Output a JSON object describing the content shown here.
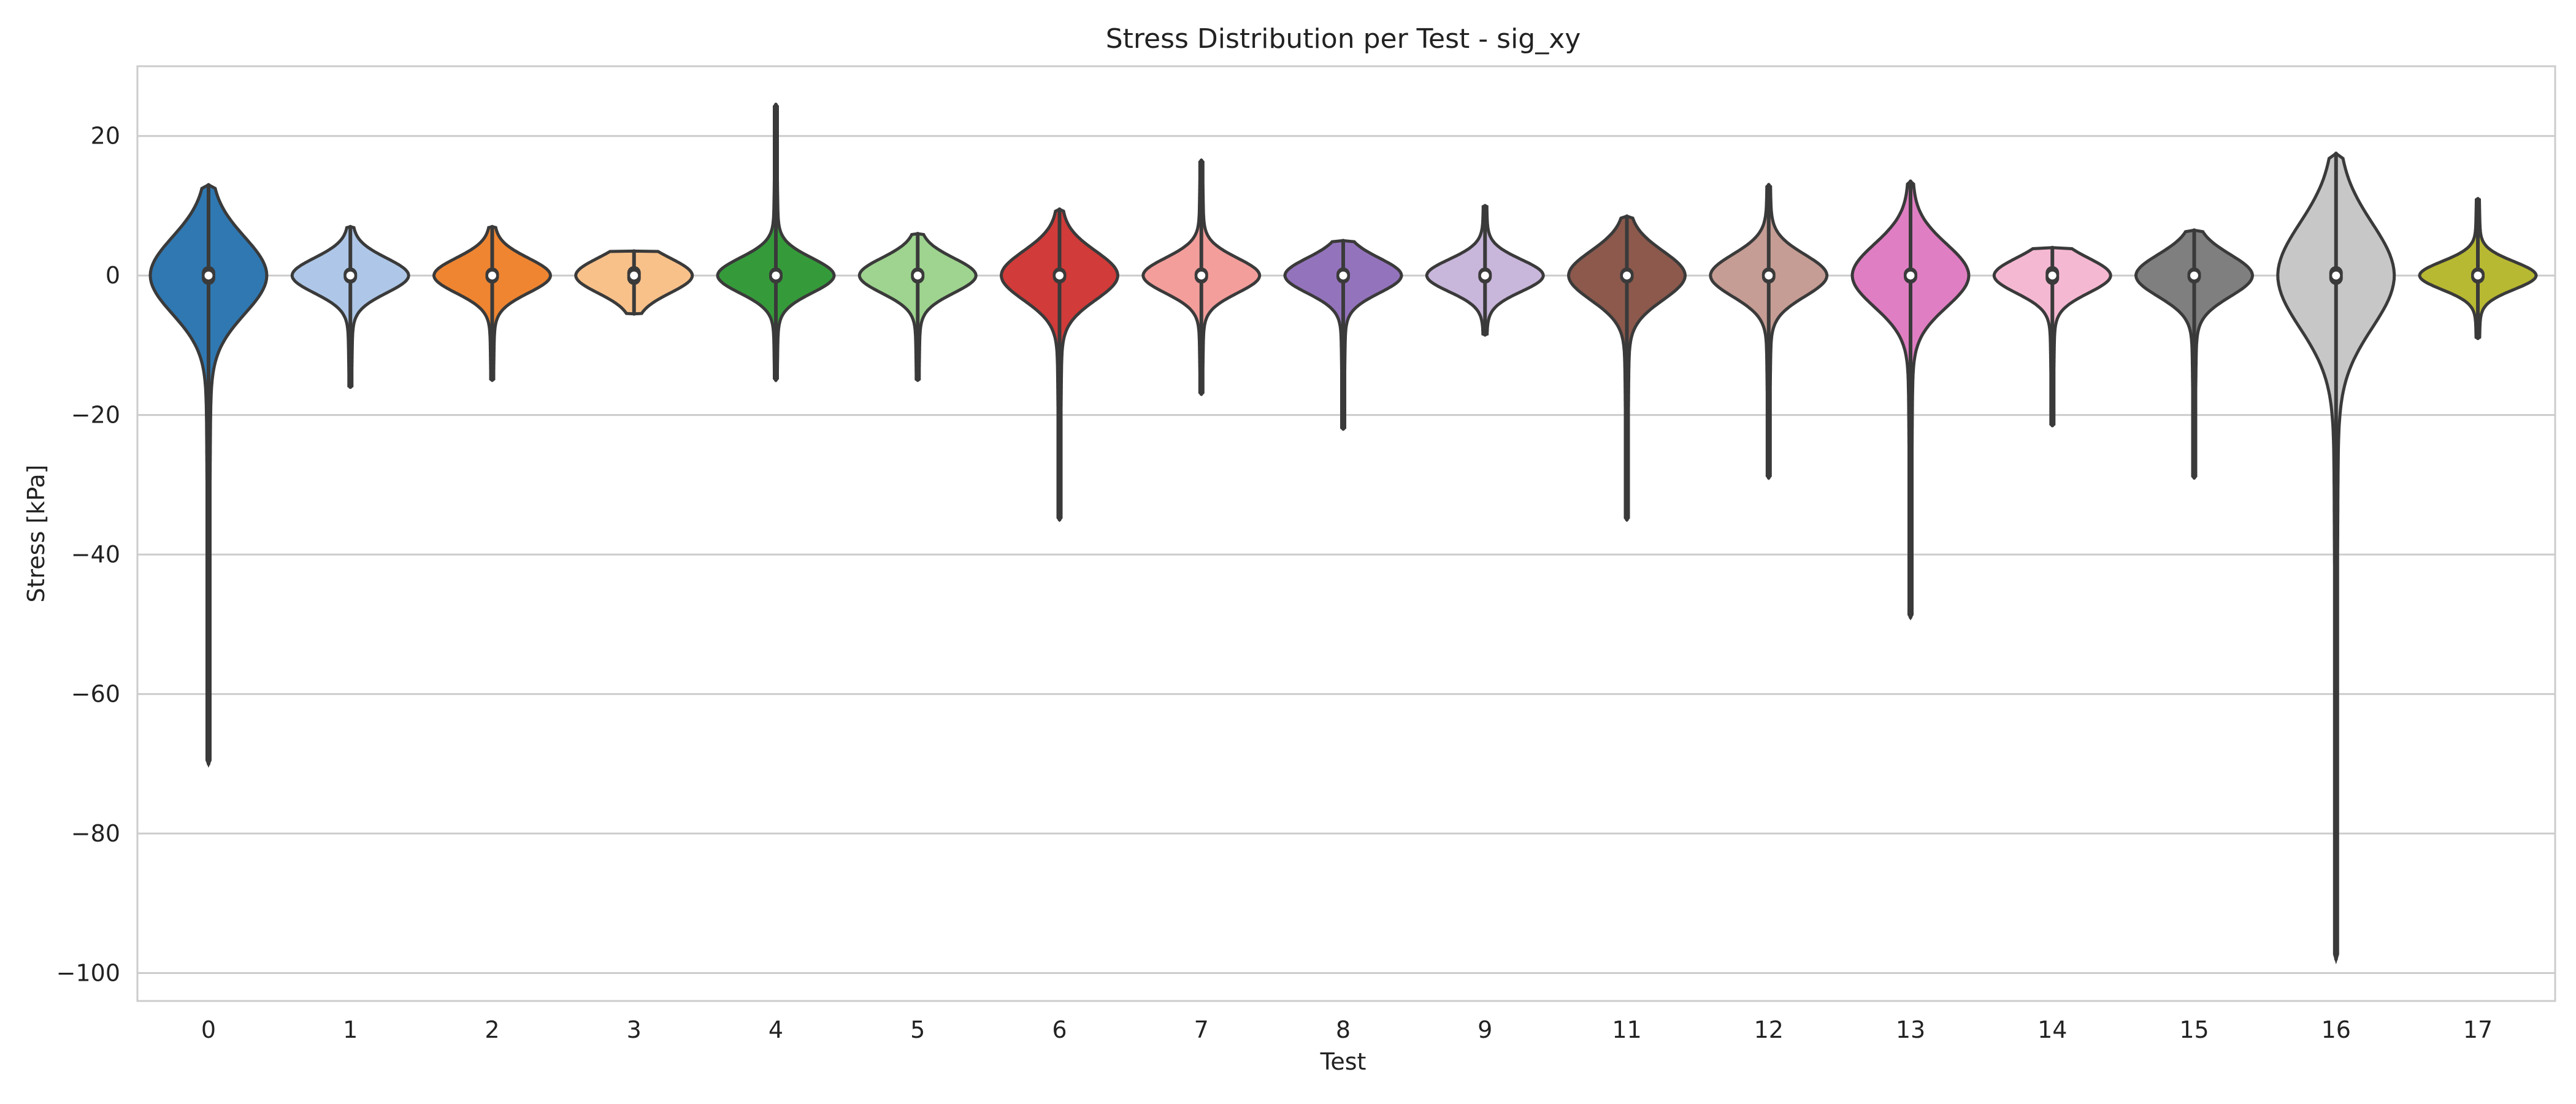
{
  "chart_data": {
    "type": "violin",
    "title": "Stress Distribution per Test - sig_xy",
    "xlabel": "Test",
    "ylabel": "Stress [kPa]",
    "ylim": [
      -104,
      30
    ],
    "yticks": [
      20,
      0,
      -20,
      -40,
      -60,
      -80,
      -100
    ],
    "ytick_labels": [
      "20",
      "0",
      "−20",
      "−40",
      "−60",
      "−80",
      "−100"
    ],
    "grid": true,
    "categories": [
      "0",
      "1",
      "2",
      "3",
      "4",
      "5",
      "6",
      "7",
      "8",
      "9",
      "11",
      "12",
      "13",
      "14",
      "15",
      "16",
      "17"
    ],
    "series": [
      {
        "test": "0",
        "min": -70,
        "max": 13,
        "median": 0,
        "q1": -1.0,
        "q3": 1.0,
        "spread": 5.5,
        "color": "#2f78b2"
      },
      {
        "test": "1",
        "min": -16,
        "max": 7,
        "median": 0,
        "q1": -0.8,
        "q3": 0.8,
        "spread": 2.5,
        "color": "#aec7e8"
      },
      {
        "test": "2",
        "min": -15,
        "max": 7,
        "median": 0,
        "q1": -0.8,
        "q3": 0.8,
        "spread": 2.5,
        "color": "#ef8531"
      },
      {
        "test": "3",
        "min": -5.5,
        "max": 3.5,
        "median": 0,
        "q1": -1.0,
        "q3": 1.0,
        "spread": 2.5,
        "color": "#f8c189"
      },
      {
        "test": "4",
        "min": -15,
        "max": 24.5,
        "median": 0,
        "q1": -0.8,
        "q3": 0.8,
        "spread": 2.5,
        "color": "#359b3a"
      },
      {
        "test": "5",
        "min": -15,
        "max": 6,
        "median": 0,
        "q1": -0.8,
        "q3": 0.8,
        "spread": 2.5,
        "color": "#9ed48f"
      },
      {
        "test": "6",
        "min": -35,
        "max": 9.5,
        "median": 0,
        "q1": -0.8,
        "q3": 0.8,
        "spread": 3.5,
        "color": "#d13b39"
      },
      {
        "test": "7",
        "min": -17,
        "max": 16.5,
        "median": 0,
        "q1": -0.8,
        "q3": 0.8,
        "spread": 2.5,
        "color": "#f39e9b"
      },
      {
        "test": "8",
        "min": -22,
        "max": 5,
        "median": 0,
        "q1": -0.8,
        "q3": 0.8,
        "spread": 2.5,
        "color": "#9473bd"
      },
      {
        "test": "9",
        "min": -8.5,
        "max": 10,
        "median": 0,
        "q1": -0.8,
        "q3": 0.8,
        "spread": 2.3,
        "color": "#c8b6db"
      },
      {
        "test": "11",
        "min": -35,
        "max": 8.5,
        "median": 0,
        "q1": -0.8,
        "q3": 0.8,
        "spread": 3.5,
        "color": "#8c594c"
      },
      {
        "test": "12",
        "min": -29,
        "max": 13,
        "median": 0,
        "q1": -0.8,
        "q3": 0.8,
        "spread": 3.0,
        "color": "#c59d94"
      },
      {
        "test": "13",
        "min": -49,
        "max": 13.5,
        "median": 0,
        "q1": -0.8,
        "q3": 0.8,
        "spread": 4.5,
        "color": "#e07ec3"
      },
      {
        "test": "14",
        "min": -21.5,
        "max": 4,
        "median": 0,
        "q1": -1.0,
        "q3": 1.0,
        "spread": 2.5,
        "color": "#f5b8d2"
      },
      {
        "test": "15",
        "min": -29,
        "max": 6.5,
        "median": 0,
        "q1": -0.8,
        "q3": 0.8,
        "spread": 3.0,
        "color": "#7f7f7f"
      },
      {
        "test": "16",
        "min": -98,
        "max": 17.5,
        "median": 0,
        "q1": -1.0,
        "q3": 1.0,
        "spread": 7.5,
        "color": "#c7c7c7"
      },
      {
        "test": "17",
        "min": -9,
        "max": 11,
        "median": 0,
        "q1": -0.8,
        "q3": 0.8,
        "spread": 2.0,
        "color": "#b8b932"
      }
    ]
  }
}
